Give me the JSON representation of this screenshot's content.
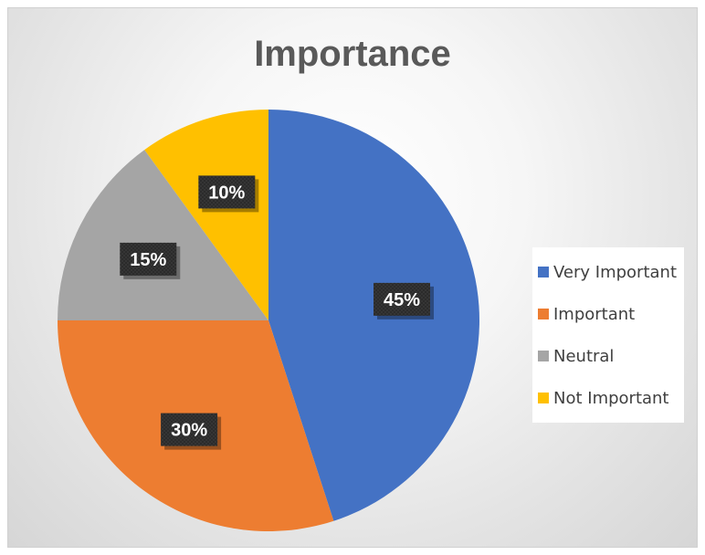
{
  "chart_data": {
    "type": "pie",
    "title": "Importance",
    "categories": [
      "Very Important",
      "Important",
      "Neutral",
      "Not Important"
    ],
    "values": [
      45,
      30,
      15,
      10
    ],
    "data_labels": [
      "45%",
      "30%",
      "15%",
      "10%"
    ],
    "colors": [
      "#4472C4",
      "#ED7D31",
      "#A5A5A5",
      "#FFC000"
    ],
    "start_angle": "12 o'clock",
    "direction": "clockwise",
    "legend_position": "right"
  }
}
